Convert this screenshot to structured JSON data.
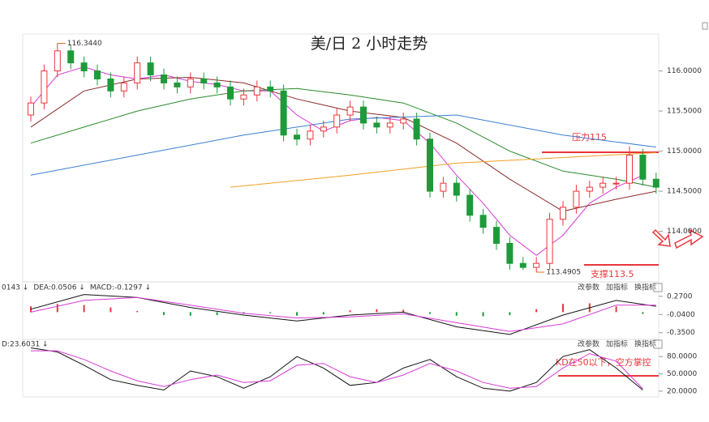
{
  "chart_data": [
    {
      "type": "candlestick",
      "title": "美/日 2 小时走势",
      "open": [
        115.45,
        115.6,
        116.0,
        116.25,
        116.1,
        116.0,
        115.9,
        115.75,
        115.85,
        116.1,
        115.95,
        115.85,
        115.8,
        115.9,
        115.85,
        115.8,
        115.65,
        115.7,
        115.8,
        115.75,
        115.2,
        115.15,
        115.25,
        115.3,
        115.45,
        115.55,
        115.35,
        115.3,
        115.35,
        115.4,
        115.15,
        114.5,
        114.6,
        114.45,
        114.2,
        114.05,
        113.85,
        113.6,
        113.55,
        113.6,
        114.15,
        114.3,
        114.5,
        114.55,
        114.6,
        114.6,
        114.95,
        114.65
      ],
      "high": [
        115.68,
        116.08,
        116.344,
        116.33,
        116.18,
        116.08,
        115.98,
        115.93,
        116.18,
        116.18,
        116.03,
        115.93,
        115.98,
        115.98,
        115.93,
        115.88,
        115.78,
        115.88,
        115.88,
        115.83,
        115.28,
        115.33,
        115.38,
        115.53,
        115.63,
        115.63,
        115.43,
        115.43,
        115.48,
        115.48,
        115.23,
        114.68,
        114.68,
        114.53,
        114.28,
        114.13,
        113.93,
        113.68,
        113.68,
        114.23,
        114.38,
        114.58,
        114.63,
        114.68,
        114.68,
        115.06,
        115.03,
        114.73
      ],
      "low": [
        115.37,
        115.52,
        115.92,
        116.02,
        115.92,
        115.82,
        115.67,
        115.67,
        115.77,
        115.87,
        115.77,
        115.72,
        115.72,
        115.77,
        115.72,
        115.57,
        115.57,
        115.62,
        115.67,
        115.12,
        115.07,
        115.07,
        115.17,
        115.22,
        115.37,
        115.27,
        115.22,
        115.22,
        115.27,
        115.07,
        114.42,
        114.42,
        114.37,
        114.12,
        113.97,
        113.77,
        113.52,
        113.52,
        113.4905,
        113.52,
        114.07,
        114.22,
        114.42,
        114.47,
        114.52,
        114.52,
        114.57,
        114.47
      ],
      "close": [
        115.6,
        116.0,
        116.25,
        116.1,
        116.0,
        115.9,
        115.75,
        115.85,
        116.1,
        115.95,
        115.85,
        115.8,
        115.9,
        115.85,
        115.8,
        115.65,
        115.7,
        115.8,
        115.75,
        115.2,
        115.15,
        115.25,
        115.3,
        115.45,
        115.55,
        115.35,
        115.3,
        115.35,
        115.4,
        115.15,
        114.5,
        114.6,
        114.45,
        114.2,
        114.05,
        113.85,
        113.6,
        113.55,
        113.6,
        114.15,
        114.3,
        114.5,
        114.55,
        114.6,
        114.6,
        114.95,
        114.65,
        114.55
      ],
      "up_color": "#e8363c",
      "down_color": "#1f9a3a",
      "series": [
        {
          "color": "#d63ad6",
          "x": [
            0,
            2,
            4,
            6,
            8,
            10,
            12,
            14,
            16,
            18,
            20,
            22,
            24,
            26,
            28,
            30,
            32,
            34,
            36,
            38,
            40,
            42,
            44,
            46
          ],
          "values": [
            115.55,
            115.95,
            116.05,
            115.95,
            115.9,
            115.95,
            115.87,
            115.83,
            115.75,
            115.75,
            115.45,
            115.25,
            115.38,
            115.42,
            115.38,
            115.1,
            114.7,
            114.35,
            113.95,
            113.7,
            113.95,
            114.35,
            114.55,
            114.7
          ]
        },
        {
          "color": "#8b2a2a",
          "x": [
            0,
            4,
            8,
            12,
            16,
            20,
            24,
            28,
            32,
            36,
            40,
            44,
            47
          ],
          "values": [
            115.3,
            115.75,
            115.9,
            115.92,
            115.85,
            115.65,
            115.5,
            115.42,
            115.1,
            114.65,
            114.25,
            114.4,
            114.5
          ]
        },
        {
          "color": "#2a8a2a",
          "x": [
            0,
            4,
            8,
            12,
            16,
            20,
            24,
            28,
            32,
            36,
            40,
            44,
            47
          ],
          "values": [
            115.1,
            115.3,
            115.5,
            115.65,
            115.75,
            115.78,
            115.7,
            115.6,
            115.35,
            115.0,
            114.75,
            114.65,
            114.55
          ]
        },
        {
          "color": "#3a7fd0",
          "x": [
            0,
            8,
            16,
            24,
            32,
            40,
            47
          ],
          "values": [
            114.7,
            114.95,
            115.2,
            115.4,
            115.45,
            115.2,
            115.05
          ]
        },
        {
          "color": "#f0a020",
          "x": [
            15,
            24,
            32,
            40,
            47
          ],
          "values": [
            114.55,
            114.7,
            114.85,
            114.92,
            114.98
          ]
        }
      ],
      "high_label": "116.3440",
      "low_label": "113.4905",
      "annotations": [
        "压力115",
        "支撑113.5"
      ],
      "ylim": [
        113.4,
        116.46
      ],
      "yticks": [
        {
          "value": 114,
          "label": "114.0000"
        },
        {
          "value": 114.5,
          "label": "114.5000"
        },
        {
          "value": 115,
          "label": "115.0000"
        },
        {
          "value": 115.5,
          "label": "115.5000"
        },
        {
          "value": 116,
          "label": "116.0000"
        }
      ]
    },
    {
      "type": "macd",
      "legend": [
        "0143 ↓",
        "DEA:0.0506 ↓",
        "MACD:-0.1297 ↓"
      ],
      "buttons": [
        "改参数",
        "加指标",
        "换指标"
      ],
      "x": [
        0,
        2,
        4,
        6,
        8,
        10,
        12,
        14,
        16,
        18,
        20,
        22,
        24,
        26,
        28,
        30,
        32,
        34,
        36,
        38,
        40,
        42,
        44,
        46
      ],
      "values": [
        0.1,
        0.14,
        0.12,
        0.08,
        0.02,
        -0.05,
        -0.06,
        -0.05,
        -0.03,
        -0.02,
        -0.06,
        -0.04,
        0.03,
        0.05,
        0.04,
        -0.03,
        -0.06,
        -0.07,
        -0.05,
        0.05,
        0.14,
        0.15,
        0.1,
        -0.03
      ],
      "up_color": "#e8363c",
      "down_color": "#1f9a3a",
      "series": [
        {
          "color": "#111111",
          "x": [
            0,
            4,
            8,
            12,
            16,
            20,
            24,
            28,
            32,
            36,
            40,
            44,
            47
          ],
          "values": [
            0.05,
            0.3,
            0.25,
            0.08,
            -0.05,
            -0.15,
            -0.05,
            0.0,
            -0.25,
            -0.38,
            -0.05,
            0.2,
            0.1
          ]
        },
        {
          "color": "#d63ad6",
          "x": [
            0,
            4,
            8,
            12,
            16,
            20,
            24,
            28,
            32,
            36,
            40,
            44,
            47
          ],
          "values": [
            0.0,
            0.2,
            0.25,
            0.12,
            -0.02,
            -0.1,
            -0.08,
            -0.03,
            -0.18,
            -0.33,
            -0.2,
            0.12,
            0.12
          ]
        }
      ],
      "ylim": [
        -0.45,
        0.46
      ],
      "yticks": [
        {
          "value": 0.27,
          "label": "0.2700"
        },
        {
          "value": -0.04,
          "label": "-0.0400"
        },
        {
          "value": -0.35,
          "label": "-0.3500"
        }
      ]
    },
    {
      "type": "kd",
      "legend": [
        "D:23.6031 ↓"
      ],
      "buttons": [
        "改参数",
        "加指标",
        "换指标"
      ],
      "annotation": "KD在50以下，空方掌控",
      "series": [
        {
          "color": "#111111",
          "x": [
            0,
            2,
            4,
            6,
            8,
            10,
            12,
            14,
            16,
            18,
            20,
            22,
            24,
            26,
            28,
            30,
            32,
            34,
            36,
            38,
            40,
            42,
            44,
            46
          ],
          "values": [
            95,
            88,
            65,
            40,
            30,
            22,
            55,
            45,
            25,
            45,
            80,
            60,
            30,
            35,
            60,
            75,
            45,
            25,
            20,
            35,
            80,
            92,
            60,
            22
          ]
        },
        {
          "color": "#d63ad6",
          "x": [
            0,
            2,
            4,
            6,
            8,
            10,
            12,
            14,
            16,
            18,
            20,
            22,
            24,
            26,
            28,
            30,
            32,
            34,
            36,
            38,
            40,
            42,
            44,
            46
          ],
          "values": [
            90,
            90,
            75,
            55,
            38,
            28,
            40,
            48,
            35,
            38,
            65,
            68,
            45,
            35,
            48,
            68,
            55,
            35,
            25,
            28,
            60,
            85,
            72,
            24
          ]
        }
      ],
      "ylim": [
        10,
        107
      ],
      "yticks": [
        {
          "value": 80,
          "label": "80.0000"
        },
        {
          "value": 50,
          "label": "50.0000"
        },
        {
          "value": 20,
          "label": "20.0000"
        }
      ]
    }
  ]
}
